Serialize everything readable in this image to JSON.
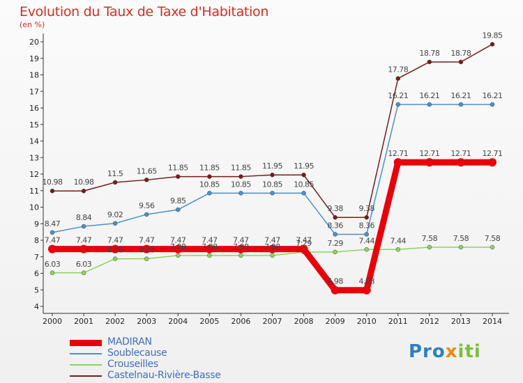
{
  "title": "Evolution du Taux de Taxe d'Habitation",
  "subtitle": "(en %)",
  "brand": {
    "text": "Proxiti",
    "part1": "Pro",
    "part2": "x",
    "part3": "iti"
  },
  "chart_data": {
    "type": "line",
    "title": "Evolution du Taux de Taxe d'Habitation",
    "subtitle": "(en %)",
    "x": [
      "2000",
      "2001",
      "2002",
      "2003",
      "2004",
      "2005",
      "2006",
      "2007",
      "2008",
      "2009",
      "2010",
      "2011",
      "2012",
      "2013",
      "2014"
    ],
    "ylim": [
      4,
      20
    ],
    "yticks": [
      4,
      5,
      6,
      7,
      8,
      9,
      10,
      11,
      12,
      13,
      14,
      15,
      16,
      17,
      18,
      19,
      20
    ],
    "grid": false,
    "legend_position": "bottom-left",
    "series": [
      {
        "name": "MADIRAN",
        "color": "#e8000b",
        "width": 9,
        "values": [
          7.47,
          7.47,
          7.47,
          7.47,
          7.47,
          7.47,
          7.47,
          7.47,
          7.47,
          4.98,
          4.98,
          12.71,
          12.71,
          12.71,
          12.71
        ],
        "labels": [
          "7.47",
          "7.47",
          "7.47",
          "7.47",
          "7.47",
          "7.47",
          "7.47",
          "7.47",
          "7.47",
          "4.98",
          "4.98",
          "12.71",
          "12.71",
          "12.71",
          "12.71"
        ]
      },
      {
        "name": "Soublecause",
        "color": "#4a90c8",
        "width": 1.5,
        "values": [
          8.47,
          8.84,
          9.02,
          9.56,
          9.85,
          10.85,
          10.85,
          10.85,
          10.85,
          8.36,
          8.36,
          16.21,
          16.21,
          16.21,
          16.21
        ],
        "labels": [
          "8.47",
          "8.84",
          "9.02",
          "9.56",
          "9.85",
          "10.85",
          "10.85",
          "10.85",
          "10.85",
          "8.36",
          "8.36",
          "16.21",
          "16.21",
          "16.21",
          "16.21"
        ]
      },
      {
        "name": "Crouseilles",
        "color": "#8cd45a",
        "width": 1.5,
        "values": [
          6.03,
          6.03,
          6.88,
          6.88,
          7.08,
          7.08,
          7.08,
          7.08,
          7.29,
          7.29,
          7.44,
          7.44,
          7.58,
          7.58,
          7.58
        ],
        "labels": [
          "6.03",
          "6.03",
          "6.88",
          "6.88",
          "7.08",
          "7.08",
          "7.08",
          "7.08",
          "7.29",
          "7.29",
          "7.44",
          "7.44",
          "7.58",
          "7.58",
          "7.58"
        ]
      },
      {
        "name": "Castelnau-Rivière-Basse",
        "color": "#7a1a1a",
        "width": 1.5,
        "values": [
          10.98,
          10.98,
          11.5,
          11.65,
          11.85,
          11.85,
          11.85,
          11.95,
          11.95,
          9.38,
          9.38,
          17.78,
          18.78,
          18.78,
          19.85
        ],
        "labels": [
          "10.98",
          "10.98",
          "11.5",
          "11.65",
          "11.85",
          "11.85",
          "11.85",
          "11.95",
          "11.95",
          "9.38",
          "9.38",
          "17.78",
          "18.78",
          "18.78",
          "19.85"
        ]
      }
    ]
  }
}
